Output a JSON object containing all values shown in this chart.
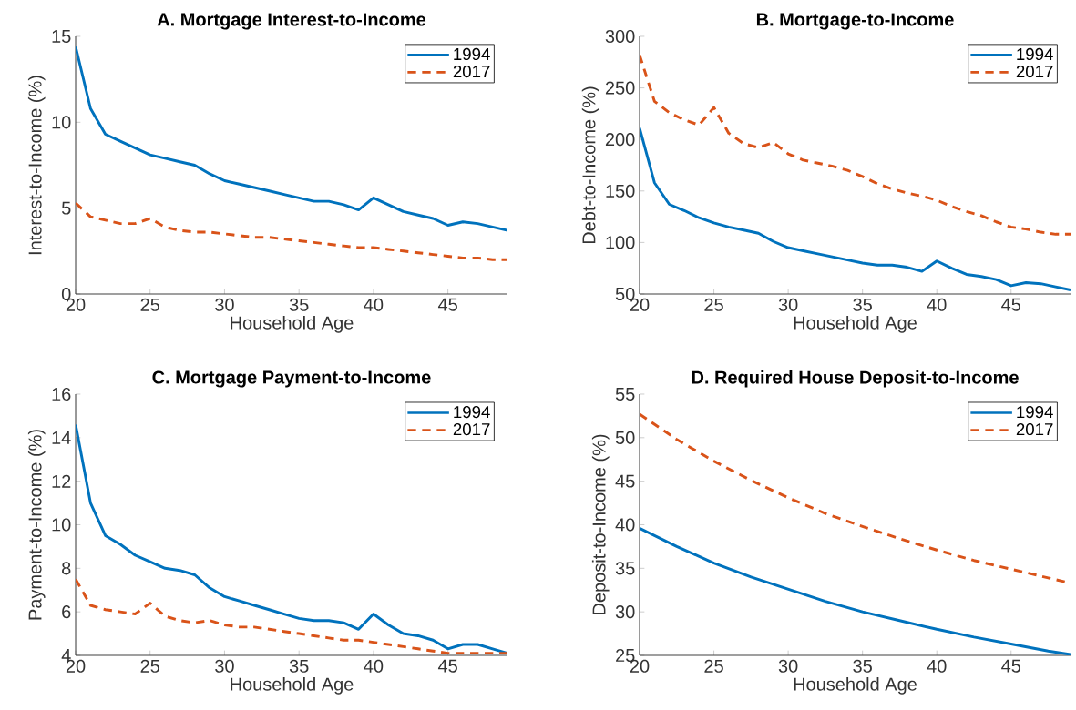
{
  "chart_data": [
    {
      "type": "line",
      "title": "A. Mortgage Interest-to-Income",
      "xlabel": "Household Age",
      "ylabel": "Interest-to-Income (%)",
      "xlim": [
        20,
        49
      ],
      "ylim": [
        0,
        15
      ],
      "xticks": [
        20,
        25,
        30,
        35,
        40,
        45
      ],
      "yticks": [
        0,
        5,
        10,
        15
      ],
      "legend": "top right",
      "x": [
        20,
        21,
        22,
        23,
        24,
        25,
        26,
        27,
        28,
        29,
        30,
        31,
        32,
        33,
        34,
        35,
        36,
        37,
        38,
        39,
        40,
        41,
        42,
        43,
        44,
        45,
        46,
        47,
        48,
        49
      ],
      "series": [
        {
          "name": "1994",
          "color": "#0072bd",
          "line_style": "solid",
          "values": [
            14.4,
            10.8,
            9.3,
            8.9,
            8.5,
            8.1,
            7.9,
            7.7,
            7.5,
            7.0,
            6.6,
            6.4,
            6.2,
            6.0,
            5.8,
            5.6,
            5.4,
            5.4,
            5.2,
            4.9,
            5.6,
            5.2,
            4.8,
            4.6,
            4.4,
            4.0,
            4.2,
            4.1,
            3.9,
            3.7
          ]
        },
        {
          "name": "2017",
          "color": "#d95319",
          "line_style": "dashed",
          "values": [
            5.3,
            4.5,
            4.3,
            4.1,
            4.1,
            4.4,
            3.9,
            3.7,
            3.6,
            3.6,
            3.5,
            3.4,
            3.3,
            3.3,
            3.2,
            3.1,
            3.0,
            2.9,
            2.8,
            2.7,
            2.7,
            2.6,
            2.5,
            2.4,
            2.3,
            2.2,
            2.1,
            2.1,
            2.0,
            2.0
          ]
        }
      ]
    },
    {
      "type": "line",
      "title": "B. Mortgage-to-Income",
      "xlabel": "Household Age",
      "ylabel": "Debt-to-Income (%)",
      "xlim": [
        20,
        49
      ],
      "ylim": [
        50,
        300
      ],
      "xticks": [
        20,
        25,
        30,
        35,
        40,
        45
      ],
      "yticks": [
        50,
        100,
        150,
        200,
        250,
        300
      ],
      "legend": "top right",
      "x": [
        20,
        21,
        22,
        23,
        24,
        25,
        26,
        27,
        28,
        29,
        30,
        31,
        32,
        33,
        34,
        35,
        36,
        37,
        38,
        39,
        40,
        41,
        42,
        43,
        44,
        45,
        46,
        47,
        48,
        49
      ],
      "series": [
        {
          "name": "1994",
          "color": "#0072bd",
          "line_style": "solid",
          "values": [
            211,
            158,
            137,
            131,
            124,
            119,
            115,
            112,
            109,
            101,
            95,
            92,
            89,
            86,
            83,
            80,
            78,
            78,
            76,
            72,
            82,
            75,
            69,
            67,
            64,
            58,
            61,
            60,
            57,
            54
          ]
        },
        {
          "name": "2017",
          "color": "#d95319",
          "line_style": "dashed",
          "values": [
            282,
            237,
            226,
            219,
            214,
            231,
            206,
            196,
            192,
            197,
            186,
            180,
            177,
            174,
            170,
            164,
            157,
            152,
            148,
            145,
            141,
            135,
            130,
            126,
            120,
            115,
            113,
            110,
            108,
            108
          ]
        }
      ]
    },
    {
      "type": "line",
      "title": "C. Mortgage Payment-to-Income",
      "xlabel": "Household Age",
      "ylabel": "Payment-to-Income (%)",
      "xlim": [
        20,
        49
      ],
      "ylim": [
        4,
        16
      ],
      "xticks": [
        20,
        25,
        30,
        35,
        40,
        45
      ],
      "yticks": [
        4,
        6,
        8,
        10,
        12,
        14,
        16
      ],
      "legend": "top right",
      "x": [
        20,
        21,
        22,
        23,
        24,
        25,
        26,
        27,
        28,
        29,
        30,
        31,
        32,
        33,
        34,
        35,
        36,
        37,
        38,
        39,
        40,
        41,
        42,
        43,
        44,
        45,
        46,
        47,
        48,
        49
      ],
      "series": [
        {
          "name": "1994",
          "color": "#0072bd",
          "line_style": "solid",
          "values": [
            14.6,
            11.0,
            9.5,
            9.1,
            8.6,
            8.3,
            8.0,
            7.9,
            7.7,
            7.1,
            6.7,
            6.5,
            6.3,
            6.1,
            5.9,
            5.7,
            5.6,
            5.6,
            5.5,
            5.2,
            5.9,
            5.4,
            5.0,
            4.9,
            4.7,
            4.3,
            4.5,
            4.5,
            4.3,
            4.1
          ]
        },
        {
          "name": "2017",
          "color": "#d95319",
          "line_style": "dashed",
          "values": [
            7.5,
            6.3,
            6.1,
            6.0,
            5.9,
            6.4,
            5.8,
            5.6,
            5.5,
            5.6,
            5.4,
            5.3,
            5.3,
            5.2,
            5.1,
            5.0,
            4.9,
            4.8,
            4.7,
            4.7,
            4.6,
            4.5,
            4.4,
            4.3,
            4.2,
            4.1,
            4.1,
            4.1,
            4.1,
            4.1
          ]
        }
      ]
    },
    {
      "type": "line",
      "title": "D. Required House Deposit-to-Income",
      "xlabel": "Household Age",
      "ylabel": "Deposit-to-Income (%)",
      "xlim": [
        20,
        49
      ],
      "ylim": [
        25,
        55
      ],
      "xticks": [
        20,
        25,
        30,
        35,
        40,
        45
      ],
      "yticks": [
        25,
        30,
        35,
        40,
        45,
        50,
        55
      ],
      "legend": "top right",
      "x": [
        20,
        22.5,
        25,
        27.5,
        30,
        32.5,
        35,
        37.5,
        40,
        42.5,
        45,
        47.5,
        49
      ],
      "series": [
        {
          "name": "1994",
          "color": "#0072bd",
          "line_style": "solid",
          "values": [
            39.6,
            37.5,
            35.6,
            34.0,
            32.6,
            31.2,
            30.0,
            29.0,
            28.0,
            27.1,
            26.3,
            25.5,
            25.1
          ]
        },
        {
          "name": "2017",
          "color": "#d95319",
          "line_style": "dashed",
          "values": [
            52.7,
            49.8,
            47.3,
            45.1,
            43.1,
            41.3,
            39.8,
            38.4,
            37.1,
            35.9,
            34.9,
            33.9,
            33.3
          ]
        }
      ]
    }
  ]
}
